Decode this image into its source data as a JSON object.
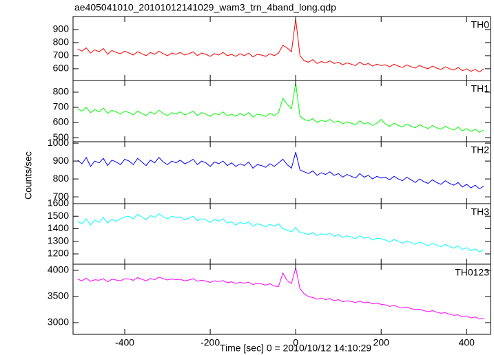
{
  "chart_data": {
    "type": "line",
    "title": "ae405041010_20101012141029_wam3_trn_4band_long.qdp",
    "x_label": "Time [sec] 0 = 2010/10/12 14:10:29",
    "y_label": "Counts/sec",
    "xlim": [
      -521,
      456
    ],
    "xticks": [
      -400,
      -200,
      0,
      200,
      400
    ],
    "x": [
      -510,
      -500,
      -490,
      -480,
      -470,
      -460,
      -450,
      -440,
      -430,
      -420,
      -410,
      -400,
      -390,
      -380,
      -370,
      -360,
      -350,
      -340,
      -330,
      -320,
      -310,
      -300,
      -290,
      -280,
      -270,
      -260,
      -250,
      -240,
      -230,
      -220,
      -210,
      -200,
      -190,
      -180,
      -170,
      -160,
      -150,
      -140,
      -130,
      -120,
      -110,
      -100,
      -90,
      -80,
      -70,
      -60,
      -50,
      -40,
      -30,
      -20,
      -10,
      0,
      10,
      20,
      30,
      40,
      50,
      60,
      70,
      80,
      90,
      100,
      110,
      120,
      130,
      140,
      150,
      160,
      170,
      180,
      190,
      200,
      210,
      220,
      230,
      240,
      250,
      260,
      270,
      280,
      290,
      300,
      310,
      320,
      330,
      340,
      350,
      360,
      370,
      380,
      390,
      400,
      410,
      420,
      430,
      440
    ],
    "series": [
      {
        "name": "TH0",
        "color": "#ff0000",
        "ylim": [
          510,
          1000
        ],
        "yticks": [
          600,
          700,
          800,
          900
        ],
        "values": [
          750,
          735,
          760,
          720,
          745,
          730,
          755,
          710,
          740,
          725,
          715,
          735,
          720,
          705,
          730,
          715,
          700,
          725,
          710,
          735,
          715,
          700,
          720,
          710,
          725,
          705,
          715,
          730,
          700,
          720,
          710,
          695,
          715,
          705,
          725,
          700,
          710,
          695,
          715,
          700,
          720,
          690,
          710,
          705,
          695,
          715,
          700,
          720,
          780,
          760,
          730,
          980,
          700,
          660,
          650,
          670,
          640,
          655,
          645,
          660,
          640,
          650,
          630,
          645,
          635,
          625,
          650,
          630,
          640,
          620,
          635,
          625,
          630,
          615,
          635,
          620,
          610,
          630,
          615,
          605,
          625,
          610,
          600,
          620,
          605,
          595,
          615,
          600,
          590,
          610,
          585,
          600,
          580,
          595,
          575,
          600
        ]
      },
      {
        "name": "TH1",
        "color": "#00ff00",
        "ylim": [
          473,
          877
        ],
        "yticks": [
          500,
          600,
          700,
          800
        ],
        "values": [
          690,
          675,
          700,
          665,
          685,
          670,
          695,
          660,
          680,
          670,
          655,
          675,
          665,
          650,
          675,
          660,
          645,
          670,
          655,
          680,
          660,
          645,
          665,
          655,
          670,
          650,
          660,
          675,
          645,
          665,
          655,
          640,
          660,
          650,
          670,
          645,
          655,
          640,
          660,
          645,
          665,
          635,
          655,
          650,
          640,
          660,
          645,
          665,
          760,
          720,
          690,
          860,
          640,
          620,
          610,
          625,
          600,
          615,
          605,
          620,
          600,
          610,
          590,
          605,
          595,
          585,
          610,
          590,
          600,
          580,
          595,
          620,
          590,
          575,
          595,
          580,
          570,
          590,
          575,
          565,
          585,
          570,
          560,
          580,
          565,
          555,
          575,
          560,
          550,
          570,
          545,
          560,
          540,
          555,
          535,
          550
        ]
      },
      {
        "name": "TH2",
        "color": "#0000ff",
        "ylim": [
          662,
          1008
        ],
        "yticks": [
          700,
          800,
          900,
          1000
        ],
        "values": [
          905,
          885,
          920,
          870,
          900,
          890,
          915,
          875,
          905,
          895,
          880,
          910,
          900,
          880,
          915,
          895,
          875,
          905,
          890,
          920,
          895,
          880,
          900,
          890,
          905,
          885,
          895,
          910,
          880,
          900,
          890,
          870,
          895,
          885,
          900,
          875,
          890,
          870,
          885,
          875,
          895,
          860,
          880,
          875,
          865,
          885,
          870,
          890,
          910,
          880,
          860,
          950,
          850,
          840,
          830,
          845,
          820,
          835,
          825,
          840,
          820,
          830,
          810,
          825,
          815,
          805,
          830,
          810,
          820,
          800,
          815,
          805,
          810,
          795,
          815,
          800,
          790,
          810,
          795,
          780,
          800,
          785,
          775,
          795,
          780,
          770,
          790,
          775,
          765,
          780,
          755,
          770,
          750,
          765,
          745,
          760
        ]
      },
      {
        "name": "TH3",
        "color": "#00ffff",
        "ylim": [
          1118,
          1600
        ],
        "yticks": [
          1200,
          1300,
          1400,
          1500,
          1600
        ],
        "values": [
          1460,
          1440,
          1480,
          1430,
          1470,
          1450,
          1490,
          1445,
          1475,
          1460,
          1480,
          1495,
          1500,
          1480,
          1515,
          1495,
          1470,
          1505,
          1490,
          1520,
          1495,
          1480,
          1500,
          1490,
          1495,
          1470,
          1485,
          1500,
          1465,
          1480,
          1470,
          1450,
          1475,
          1460,
          1480,
          1445,
          1455,
          1430,
          1450,
          1440,
          1455,
          1420,
          1440,
          1430,
          1415,
          1435,
          1420,
          1440,
          1400,
          1390,
          1375,
          1410,
          1370,
          1365,
          1355,
          1370,
          1345,
          1360,
          1350,
          1365,
          1340,
          1355,
          1330,
          1345,
          1335,
          1320,
          1345,
          1325,
          1335,
          1310,
          1325,
          1320,
          1310,
          1295,
          1315,
          1300,
          1285,
          1305,
          1290,
          1275,
          1295,
          1280,
          1265,
          1285,
          1270,
          1255,
          1275,
          1260,
          1245,
          1265,
          1235,
          1250,
          1225,
          1240,
          1215,
          1235
        ]
      },
      {
        "name": "TH0123",
        "color": "#ff00ff",
        "ylim": [
          2776,
          4118
        ],
        "yticks": [
          3000,
          3500,
          4000
        ],
        "values": [
          3830,
          3800,
          3850,
          3790,
          3820,
          3810,
          3840,
          3780,
          3830,
          3815,
          3800,
          3840,
          3835,
          3810,
          3860,
          3830,
          3800,
          3845,
          3820,
          3870,
          3840,
          3815,
          3835,
          3820,
          3830,
          3800,
          3815,
          3840,
          3790,
          3810,
          3795,
          3770,
          3800,
          3785,
          3805,
          3765,
          3780,
          3750,
          3770,
          3755,
          3775,
          3730,
          3750,
          3740,
          3720,
          3745,
          3700,
          3690,
          3950,
          3800,
          3750,
          4050,
          3650,
          3550,
          3500,
          3480,
          3450,
          3470,
          3440,
          3460,
          3420,
          3440,
          3400,
          3420,
          3405,
          3385,
          3410,
          3380,
          3395,
          3360,
          3375,
          3350,
          3340,
          3310,
          3330,
          3300,
          3280,
          3300,
          3270,
          3250,
          3260,
          3230,
          3210,
          3230,
          3200,
          3180,
          3190,
          3160,
          3140,
          3150,
          3110,
          3130,
          3090,
          3110,
          3070,
          3090
        ]
      }
    ]
  }
}
